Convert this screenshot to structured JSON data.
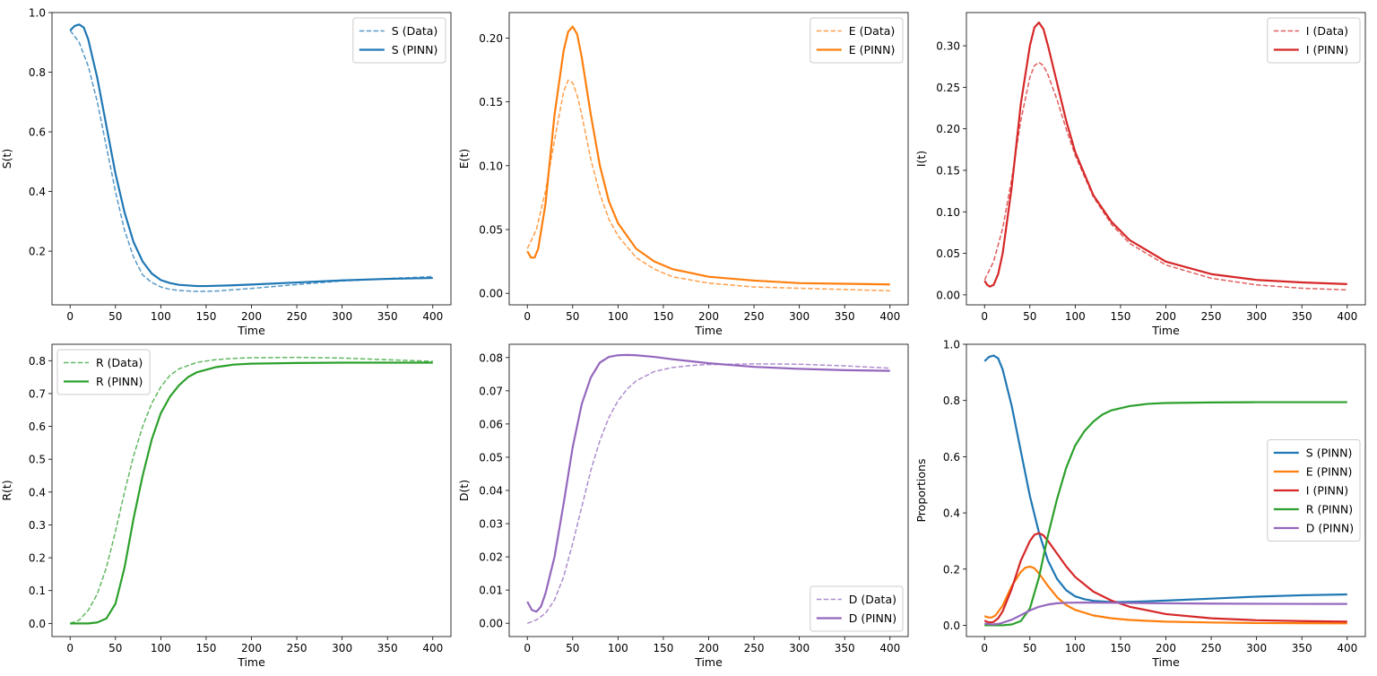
{
  "chart_data": [
    {
      "type": "line",
      "xlabel": "Time",
      "ylabel": "S(t)",
      "xlim": [
        -20,
        420
      ],
      "ylim": [
        0.02,
        1.0
      ],
      "xticks": [
        0,
        50,
        100,
        150,
        200,
        250,
        300,
        350,
        400
      ],
      "yticks": [
        0.2,
        0.4,
        0.6,
        0.8,
        1.0
      ],
      "ytick_labels": [
        "0.2",
        "0.4",
        "0.6",
        "0.8",
        "1.0"
      ],
      "legend_position": "top-right",
      "series": [
        {
          "name": "S (Data)",
          "color": "#1f77b4",
          "style": "dashed",
          "alpha": 0.75,
          "x": [
            0,
            10,
            20,
            30,
            40,
            50,
            60,
            70,
            80,
            90,
            100,
            110,
            120,
            140,
            160,
            200,
            250,
            300,
            350,
            400
          ],
          "y": [
            0.94,
            0.9,
            0.82,
            0.7,
            0.55,
            0.4,
            0.27,
            0.18,
            0.12,
            0.095,
            0.08,
            0.072,
            0.068,
            0.065,
            0.066,
            0.075,
            0.088,
            0.1,
            0.108,
            0.115
          ]
        },
        {
          "name": "S (PINN)",
          "color": "#1f77b4",
          "style": "solid",
          "alpha": 1,
          "x": [
            0,
            5,
            10,
            15,
            20,
            30,
            40,
            50,
            60,
            70,
            80,
            90,
            100,
            110,
            120,
            140,
            150,
            175,
            200,
            250,
            300,
            350,
            400
          ],
          "y": [
            0.94,
            0.955,
            0.96,
            0.95,
            0.91,
            0.78,
            0.62,
            0.46,
            0.33,
            0.23,
            0.165,
            0.125,
            0.103,
            0.093,
            0.087,
            0.083,
            0.083,
            0.085,
            0.088,
            0.095,
            0.102,
            0.107,
            0.11
          ]
        }
      ]
    },
    {
      "type": "line",
      "xlabel": "Time",
      "ylabel": "E(t)",
      "xlim": [
        -20,
        420
      ],
      "ylim": [
        -0.009,
        0.22
      ],
      "xticks": [
        0,
        50,
        100,
        150,
        200,
        250,
        300,
        350,
        400
      ],
      "yticks": [
        0.0,
        0.05,
        0.1,
        0.15,
        0.2
      ],
      "ytick_labels": [
        "0.00",
        "0.05",
        "0.10",
        "0.15",
        "0.20"
      ],
      "legend_position": "top-right",
      "series": [
        {
          "name": "E (Data)",
          "color": "#ff7f0e",
          "style": "dashed",
          "alpha": 0.75,
          "x": [
            0,
            10,
            20,
            30,
            40,
            45,
            50,
            55,
            60,
            70,
            80,
            90,
            100,
            120,
            140,
            160,
            200,
            250,
            300,
            350,
            400
          ],
          "y": [
            0.035,
            0.05,
            0.08,
            0.12,
            0.158,
            0.167,
            0.165,
            0.155,
            0.14,
            0.105,
            0.078,
            0.058,
            0.045,
            0.028,
            0.019,
            0.013,
            0.008,
            0.005,
            0.004,
            0.003,
            0.002
          ]
        },
        {
          "name": "E (PINN)",
          "color": "#ff7f0e",
          "style": "solid",
          "alpha": 1,
          "x": [
            0,
            4,
            8,
            12,
            20,
            30,
            40,
            45,
            50,
            55,
            60,
            70,
            80,
            90,
            100,
            120,
            140,
            160,
            200,
            250,
            300,
            350,
            400
          ],
          "y": [
            0.033,
            0.028,
            0.028,
            0.035,
            0.07,
            0.14,
            0.19,
            0.205,
            0.209,
            0.203,
            0.185,
            0.14,
            0.1,
            0.072,
            0.055,
            0.035,
            0.025,
            0.019,
            0.013,
            0.01,
            0.008,
            0.0075,
            0.007
          ]
        }
      ]
    },
    {
      "type": "line",
      "xlabel": "Time",
      "ylabel": "I(t)",
      "xlim": [
        -20,
        420
      ],
      "ylim": [
        -0.012,
        0.34
      ],
      "xticks": [
        0,
        50,
        100,
        150,
        200,
        250,
        300,
        350,
        400
      ],
      "yticks": [
        0.0,
        0.05,
        0.1,
        0.15,
        0.2,
        0.25,
        0.3
      ],
      "ytick_labels": [
        "0.00",
        "0.05",
        "0.10",
        "0.15",
        "0.20",
        "0.25",
        "0.30"
      ],
      "legend_position": "top-right",
      "series": [
        {
          "name": "I (Data)",
          "color": "#d62728",
          "style": "dashed",
          "alpha": 0.75,
          "x": [
            0,
            10,
            20,
            30,
            40,
            50,
            55,
            60,
            65,
            70,
            80,
            90,
            100,
            120,
            140,
            160,
            200,
            250,
            300,
            350,
            400
          ],
          "y": [
            0.018,
            0.04,
            0.08,
            0.14,
            0.21,
            0.262,
            0.276,
            0.28,
            0.276,
            0.265,
            0.235,
            0.2,
            0.168,
            0.118,
            0.085,
            0.062,
            0.036,
            0.02,
            0.012,
            0.008,
            0.006
          ]
        },
        {
          "name": "I (PINN)",
          "color": "#d62728",
          "style": "solid",
          "alpha": 1,
          "x": [
            0,
            3,
            6,
            10,
            15,
            20,
            30,
            40,
            50,
            55,
            60,
            65,
            70,
            80,
            90,
            100,
            120,
            140,
            160,
            200,
            250,
            300,
            350,
            400
          ],
          "y": [
            0.017,
            0.012,
            0.01,
            0.012,
            0.025,
            0.05,
            0.13,
            0.23,
            0.3,
            0.322,
            0.328,
            0.32,
            0.3,
            0.255,
            0.21,
            0.172,
            0.12,
            0.088,
            0.066,
            0.04,
            0.025,
            0.018,
            0.015,
            0.013
          ]
        }
      ]
    },
    {
      "type": "line",
      "xlabel": "Time",
      "ylabel": "R(t)",
      "xlim": [
        -20,
        420
      ],
      "ylim": [
        -0.04,
        0.85
      ],
      "xticks": [
        0,
        50,
        100,
        150,
        200,
        250,
        300,
        350,
        400
      ],
      "yticks": [
        0.0,
        0.1,
        0.2,
        0.3,
        0.4,
        0.5,
        0.6,
        0.7,
        0.8
      ],
      "ytick_labels": [
        "0.0",
        "0.1",
        "0.2",
        "0.3",
        "0.4",
        "0.5",
        "0.6",
        "0.7",
        "0.8"
      ],
      "legend_position": "top-left",
      "series": [
        {
          "name": "R (Data)",
          "color": "#2ca02c",
          "style": "dashed",
          "alpha": 0.75,
          "x": [
            0,
            10,
            20,
            30,
            40,
            50,
            60,
            70,
            80,
            90,
            100,
            110,
            120,
            140,
            160,
            180,
            200,
            250,
            300,
            350,
            400
          ],
          "y": [
            0.0,
            0.01,
            0.04,
            0.09,
            0.17,
            0.28,
            0.4,
            0.51,
            0.6,
            0.67,
            0.72,
            0.755,
            0.775,
            0.795,
            0.803,
            0.807,
            0.809,
            0.81,
            0.808,
            0.803,
            0.798
          ]
        },
        {
          "name": "R (PINN)",
          "color": "#2ca02c",
          "style": "solid",
          "alpha": 1,
          "x": [
            0,
            10,
            20,
            30,
            40,
            50,
            60,
            70,
            80,
            90,
            100,
            110,
            120,
            130,
            140,
            160,
            180,
            200,
            250,
            300,
            350,
            400
          ],
          "y": [
            0.0,
            0.0,
            0.0,
            0.003,
            0.015,
            0.06,
            0.17,
            0.32,
            0.45,
            0.56,
            0.64,
            0.69,
            0.725,
            0.75,
            0.765,
            0.78,
            0.788,
            0.791,
            0.793,
            0.794,
            0.794,
            0.794
          ]
        }
      ]
    },
    {
      "type": "line",
      "xlabel": "Time",
      "ylabel": "D(t)",
      "xlim": [
        -20,
        420
      ],
      "ylim": [
        -0.004,
        0.084
      ],
      "xticks": [
        0,
        50,
        100,
        150,
        200,
        250,
        300,
        350,
        400
      ],
      "yticks": [
        0.0,
        0.01,
        0.02,
        0.03,
        0.04,
        0.05,
        0.06,
        0.07,
        0.08
      ],
      "ytick_labels": [
        "0.00",
        "0.01",
        "0.02",
        "0.03",
        "0.04",
        "0.05",
        "0.06",
        "0.07",
        "0.08"
      ],
      "legend_position": "bottom-right",
      "series": [
        {
          "name": "D (Data)",
          "color": "#9467bd",
          "style": "dashed",
          "alpha": 0.75,
          "x": [
            0,
            10,
            20,
            30,
            40,
            50,
            60,
            70,
            80,
            90,
            100,
            110,
            120,
            140,
            160,
            180,
            200,
            250,
            300,
            350,
            400
          ],
          "y": [
            0.0,
            0.001,
            0.003,
            0.007,
            0.014,
            0.024,
            0.035,
            0.046,
            0.055,
            0.062,
            0.067,
            0.0705,
            0.073,
            0.0758,
            0.077,
            0.0776,
            0.0779,
            0.0781,
            0.078,
            0.0775,
            0.0768
          ]
        },
        {
          "name": "D (PINN)",
          "color": "#9467bd",
          "style": "solid",
          "alpha": 1,
          "x": [
            0,
            5,
            10,
            15,
            20,
            30,
            40,
            50,
            60,
            70,
            80,
            90,
            100,
            110,
            120,
            140,
            160,
            200,
            250,
            300,
            350,
            400
          ],
          "y": [
            0.0065,
            0.004,
            0.0035,
            0.005,
            0.009,
            0.02,
            0.036,
            0.053,
            0.066,
            0.074,
            0.0785,
            0.0802,
            0.0807,
            0.0808,
            0.0807,
            0.0802,
            0.0795,
            0.0783,
            0.0772,
            0.0766,
            0.0762,
            0.076
          ]
        }
      ]
    },
    {
      "type": "line",
      "xlabel": "Time",
      "ylabel": "Proportions",
      "xlim": [
        -20,
        420
      ],
      "ylim": [
        -0.04,
        1.0
      ],
      "xticks": [
        0,
        50,
        100,
        150,
        200,
        250,
        300,
        350,
        400
      ],
      "yticks": [
        0.0,
        0.2,
        0.4,
        0.6,
        0.8,
        1.0
      ],
      "ytick_labels": [
        "0.0",
        "0.2",
        "0.4",
        "0.6",
        "0.8",
        "1.0"
      ],
      "legend_position": "center-right",
      "series": [
        {
          "name": "S (PINN)",
          "color": "#1f77b4",
          "style": "solid",
          "alpha": 1,
          "x": [
            0,
            5,
            10,
            15,
            20,
            30,
            40,
            50,
            60,
            70,
            80,
            90,
            100,
            110,
            120,
            140,
            150,
            175,
            200,
            250,
            300,
            350,
            400
          ],
          "y": [
            0.94,
            0.955,
            0.96,
            0.95,
            0.91,
            0.78,
            0.62,
            0.46,
            0.33,
            0.23,
            0.165,
            0.125,
            0.103,
            0.093,
            0.087,
            0.083,
            0.083,
            0.085,
            0.088,
            0.095,
            0.102,
            0.107,
            0.11
          ]
        },
        {
          "name": "E (PINN)",
          "color": "#ff7f0e",
          "style": "solid",
          "alpha": 1,
          "x": [
            0,
            4,
            8,
            12,
            20,
            30,
            40,
            45,
            50,
            55,
            60,
            70,
            80,
            90,
            100,
            120,
            140,
            160,
            200,
            250,
            300,
            350,
            400
          ],
          "y": [
            0.033,
            0.028,
            0.028,
            0.035,
            0.07,
            0.14,
            0.19,
            0.205,
            0.209,
            0.203,
            0.185,
            0.14,
            0.1,
            0.072,
            0.055,
            0.035,
            0.025,
            0.019,
            0.013,
            0.01,
            0.008,
            0.0075,
            0.007
          ]
        },
        {
          "name": "I (PINN)",
          "color": "#d62728",
          "style": "solid",
          "alpha": 1,
          "x": [
            0,
            3,
            6,
            10,
            15,
            20,
            30,
            40,
            50,
            55,
            60,
            65,
            70,
            80,
            90,
            100,
            120,
            140,
            160,
            200,
            250,
            300,
            350,
            400
          ],
          "y": [
            0.017,
            0.012,
            0.01,
            0.012,
            0.025,
            0.05,
            0.13,
            0.23,
            0.3,
            0.322,
            0.328,
            0.32,
            0.3,
            0.255,
            0.21,
            0.172,
            0.12,
            0.088,
            0.066,
            0.04,
            0.025,
            0.018,
            0.015,
            0.013
          ]
        },
        {
          "name": "R (PINN)",
          "color": "#2ca02c",
          "style": "solid",
          "alpha": 1,
          "x": [
            0,
            10,
            20,
            30,
            40,
            50,
            60,
            70,
            80,
            90,
            100,
            110,
            120,
            130,
            140,
            160,
            180,
            200,
            250,
            300,
            350,
            400
          ],
          "y": [
            0.0,
            0.0,
            0.0,
            0.003,
            0.015,
            0.06,
            0.17,
            0.32,
            0.45,
            0.56,
            0.64,
            0.69,
            0.725,
            0.75,
            0.765,
            0.78,
            0.788,
            0.791,
            0.793,
            0.794,
            0.794,
            0.794
          ]
        },
        {
          "name": "D (PINN)",
          "color": "#9467bd",
          "style": "solid",
          "alpha": 1,
          "x": [
            0,
            5,
            10,
            15,
            20,
            30,
            40,
            50,
            60,
            70,
            80,
            90,
            100,
            110,
            120,
            140,
            160,
            200,
            250,
            300,
            350,
            400
          ],
          "y": [
            0.0065,
            0.004,
            0.0035,
            0.005,
            0.009,
            0.02,
            0.036,
            0.053,
            0.066,
            0.074,
            0.0785,
            0.0802,
            0.0807,
            0.0808,
            0.0807,
            0.0802,
            0.0795,
            0.0783,
            0.0772,
            0.0766,
            0.0762,
            0.076
          ]
        }
      ]
    }
  ]
}
